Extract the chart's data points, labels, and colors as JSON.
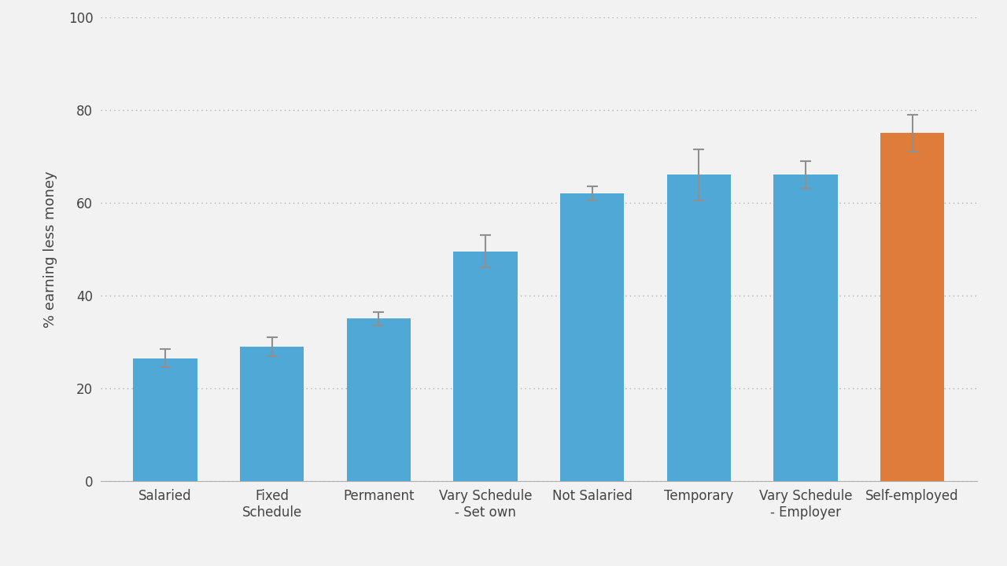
{
  "categories": [
    "Salaried",
    "Fixed\nSchedule",
    "Permanent",
    "Vary Schedule\n- Set own",
    "Not Salaried",
    "Temporary",
    "Vary Schedule\n- Employer",
    "Self-employed"
  ],
  "values": [
    26.5,
    29.0,
    35.0,
    49.5,
    62.0,
    66.0,
    66.0,
    75.0
  ],
  "errors": [
    2.0,
    2.0,
    1.5,
    3.5,
    1.5,
    5.5,
    3.0,
    4.0
  ],
  "bar_colors": [
    "#4fa8d5",
    "#4fa8d5",
    "#4fa8d5",
    "#4fa8d5",
    "#4fa8d5",
    "#4fa8d5",
    "#4fa8d5",
    "#e07c3a"
  ],
  "ylabel": "% earning less money",
  "ylim": [
    0,
    100
  ],
  "yticks": [
    0,
    20,
    40,
    60,
    80,
    100
  ],
  "background_color": "#f2f2f2",
  "plot_bg_color": "#f2f2f2",
  "grid_color": "#b0b0b0",
  "error_color": "#909090",
  "bar_width": 0.6,
  "label_fontsize": 13,
  "tick_fontsize": 12,
  "ylabel_fontsize": 13
}
